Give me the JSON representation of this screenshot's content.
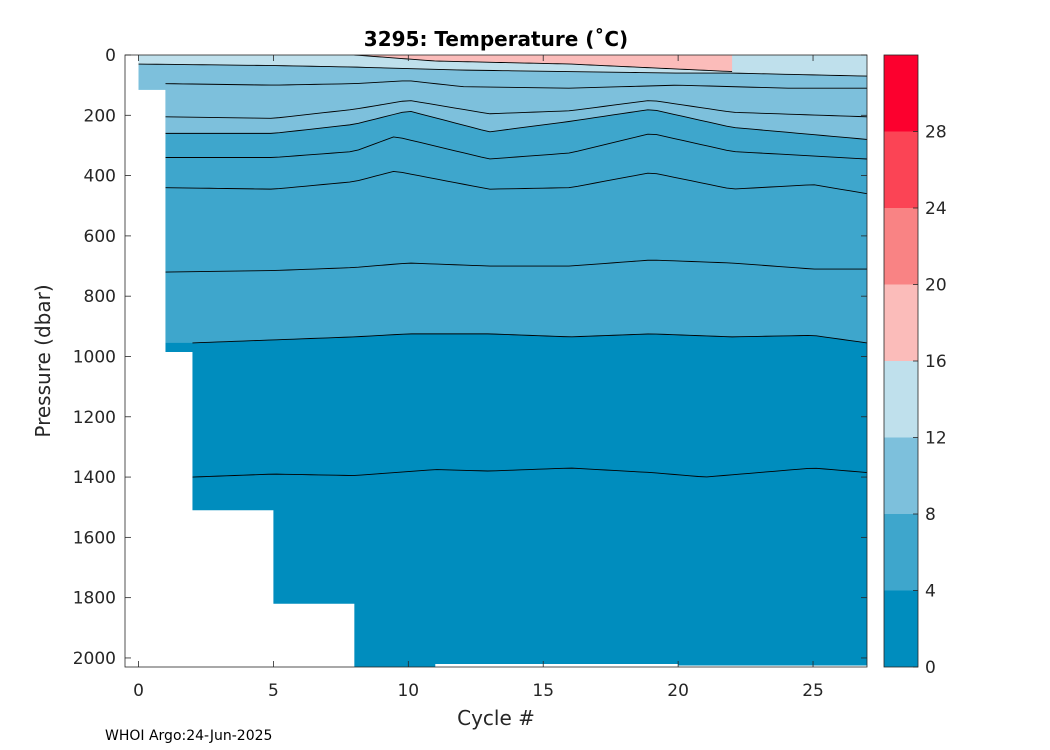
{
  "footer_text": "WHOI Argo:24-Jun-2025",
  "chart_data": {
    "type": "contourf",
    "title": "3295:  Temperature (˚C)",
    "xlabel": "Cycle #",
    "ylabel": "Pressure (dbar)",
    "xlim": [
      -0.5,
      27
    ],
    "ylim": [
      0,
      2030
    ],
    "y_reversed": true,
    "x_ticks": [
      0,
      5,
      10,
      15,
      20,
      25
    ],
    "y_ticks": [
      0,
      200,
      400,
      600,
      800,
      1000,
      1200,
      1400,
      1600,
      1800,
      2000
    ],
    "colorbar": {
      "levels": [
        0,
        4,
        8,
        12,
        16,
        20,
        24,
        28,
        32
      ],
      "tick_labels": [
        "0",
        "4",
        "8",
        "12",
        "16",
        "20",
        "24",
        "28"
      ],
      "colors": [
        "#008dbe",
        "#3ea6cc",
        "#7dc0dc",
        "#bfe0ec",
        "#fbbcba",
        "#f98384",
        "#fb4455",
        "#fc002e"
      ]
    },
    "max_pressure_by_cycle": {
      "cycle": [
        0,
        1,
        2,
        5,
        8,
        11,
        20,
        27
      ],
      "pressure_dbar": [
        115,
        985,
        1510,
        1820,
        2030,
        2020,
        2025,
        2030
      ]
    },
    "isotherms": [
      {
        "level_degC": 16,
        "cycles": [
          8,
          11,
          16,
          22
        ],
        "pressure_dbar": [
          0,
          20,
          30,
          55
        ]
      },
      {
        "level_degC": 12,
        "cycles": [
          0,
          5,
          8,
          12,
          16,
          20,
          22,
          27
        ],
        "pressure_dbar": [
          30,
          35,
          40,
          50,
          55,
          60,
          60,
          70
        ]
      },
      {
        "level_degC": 10,
        "cycles": [
          1,
          5,
          8,
          10,
          12,
          16,
          20,
          24,
          27
        ],
        "pressure_dbar": [
          95,
          100,
          95,
          85,
          105,
          110,
          100,
          110,
          110
        ]
      },
      {
        "level_degC": 9,
        "cycles": [
          1,
          5,
          8,
          10,
          13,
          16,
          19,
          22,
          27
        ],
        "pressure_dbar": [
          205,
          210,
          180,
          150,
          195,
          185,
          150,
          190,
          205
        ]
      },
      {
        "level_degC": 8,
        "cycles": [
          1,
          5,
          8,
          10,
          13,
          16,
          19,
          22,
          27
        ],
        "pressure_dbar": [
          260,
          260,
          230,
          185,
          255,
          220,
          180,
          240,
          280
        ]
      },
      {
        "level_degC": 7,
        "cycles": [
          1,
          5,
          8,
          9.5,
          13,
          16,
          19,
          22,
          27
        ],
        "pressure_dbar": [
          340,
          340,
          320,
          270,
          345,
          325,
          260,
          320,
          345
        ]
      },
      {
        "level_degC": 6,
        "cycles": [
          1,
          5,
          8,
          9.5,
          13,
          16,
          19,
          22,
          25,
          27
        ],
        "pressure_dbar": [
          440,
          445,
          420,
          385,
          445,
          440,
          390,
          445,
          430,
          460
        ]
      },
      {
        "level_degC": 5,
        "cycles": [
          1,
          5,
          8,
          10,
          13,
          16,
          19,
          22,
          25,
          27
        ],
        "pressure_dbar": [
          720,
          715,
          705,
          690,
          700,
          700,
          680,
          690,
          710,
          710
        ]
      },
      {
        "level_degC": 4,
        "cycles": [
          2,
          5,
          8,
          10,
          13,
          16,
          19,
          22,
          25,
          27
        ],
        "pressure_dbar": [
          955,
          945,
          935,
          925,
          925,
          935,
          925,
          935,
          930,
          955
        ]
      },
      {
        "level_degC": 3,
        "cycles": [
          2,
          5,
          8,
          11,
          13,
          16,
          19,
          21,
          25,
          27
        ],
        "pressure_dbar": [
          1400,
          1390,
          1395,
          1375,
          1380,
          1370,
          1385,
          1400,
          1370,
          1385
        ]
      }
    ],
    "band_fill_degC": [
      {
        "between_isotherms": [
          16,
          "surface"
        ],
        "cycles": [
          8,
          22
        ],
        "color_level_degC": 16
      },
      {
        "between_isotherms": [
          12,
          "surface"
        ],
        "cycles": [
          0,
          8,
          22,
          27
        ],
        "color_level_degC": 12
      },
      {
        "between_isotherms": [
          8,
          12
        ],
        "color_level_degC": 8
      },
      {
        "between_isotherms": [
          4,
          8
        ],
        "color_level_degC": 4
      },
      {
        "between_isotherms": [
          "bottom",
          4
        ],
        "color_level_degC": 0
      }
    ]
  }
}
